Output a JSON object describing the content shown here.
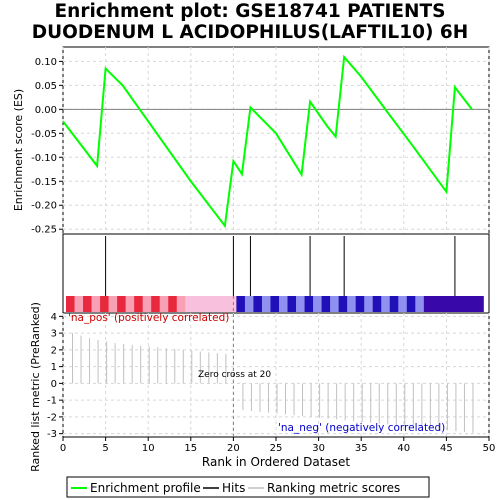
{
  "title_lines": [
    "Enrichment plot: GSE18741 PATIENTS",
    "DUODENUM L ACIDOPHILUS(LAFTIL10) 6H"
  ],
  "colors": {
    "es_line": "#00ff00",
    "hits": "#000000",
    "ranking_bars": "#c0c0c0",
    "zero_line": "#808080",
    "pos_label": "#cc0000",
    "neg_label": "#0000cc",
    "legend_border": "#000000",
    "grid": "#d8d8d8"
  },
  "chart_data": [
    {
      "type": "line",
      "name": "enrichment-profile",
      "ylabel": "Enrichment score (ES)",
      "xlim": [
        0,
        50
      ],
      "ylim": [
        -0.26,
        0.13
      ],
      "yticks": [
        0.1,
        0.05,
        0.0,
        -0.05,
        -0.1,
        -0.15,
        -0.2,
        -0.25
      ],
      "ytick_labels": [
        "0.10",
        "0.05",
        "0.00",
        "-0.05",
        "-0.10",
        "-0.15",
        "-0.20",
        "-0.25"
      ],
      "grid": true,
      "x": [
        0,
        4,
        5,
        7,
        11,
        15,
        19,
        20,
        21,
        22,
        25,
        28,
        29,
        31,
        32,
        33,
        35,
        38,
        41,
        45,
        46,
        48
      ],
      "y": [
        -0.025,
        -0.118,
        0.085,
        0.05,
        -0.05,
        -0.15,
        -0.243,
        -0.108,
        -0.135,
        0.004,
        -0.05,
        -0.136,
        0.016,
        -0.035,
        -0.057,
        0.109,
        0.068,
        -0.004,
        -0.075,
        -0.172,
        0.046,
        0.0
      ]
    },
    {
      "type": "table",
      "name": "hits",
      "hit_positions": [
        5,
        20,
        22,
        29,
        33,
        46
      ],
      "heatmap_rank_count": 49
    },
    {
      "type": "bar",
      "name": "ranked-list-metric",
      "xlabel": "Rank in Ordered Dataset",
      "ylabel": "Ranked list metric (PreRanked)",
      "xlim": [
        0,
        50
      ],
      "ylim": [
        -3.2,
        4.2
      ],
      "xticks": [
        0,
        5,
        10,
        15,
        20,
        25,
        30,
        35,
        40,
        45,
        50
      ],
      "xtick_labels": [
        "0",
        "5",
        "10",
        "15",
        "20",
        "25",
        "30",
        "35",
        "40",
        "45",
        "50"
      ],
      "yticks": [
        4,
        3,
        2,
        1,
        0,
        -1,
        -2,
        -3
      ],
      "ytick_labels": [
        "4",
        "3",
        "2",
        "1",
        "0",
        "-1",
        "-2",
        "-3"
      ],
      "ranks": [
        1,
        2,
        3,
        4,
        5,
        6,
        7,
        8,
        9,
        10,
        11,
        12,
        13,
        14,
        15,
        16,
        17,
        18,
        19,
        21,
        22,
        23,
        24,
        25,
        26,
        27,
        28,
        29,
        30,
        31,
        32,
        33,
        34,
        35,
        36,
        37,
        38,
        39,
        40,
        41,
        42,
        43,
        44,
        45,
        46,
        47,
        48
      ],
      "values": [
        3.0,
        2.85,
        2.7,
        2.6,
        2.5,
        2.4,
        2.35,
        2.3,
        2.25,
        2.2,
        2.15,
        2.1,
        2.05,
        2.0,
        1.95,
        1.9,
        1.85,
        1.8,
        1.75,
        -1.6,
        -1.65,
        -1.7,
        -1.75,
        -1.8,
        -1.85,
        -1.9,
        -1.95,
        -2.0,
        -2.05,
        -2.1,
        -2.15,
        -2.2,
        -2.25,
        -2.3,
        -2.35,
        -2.4,
        -2.45,
        -2.5,
        -2.55,
        -2.6,
        -2.65,
        -2.7,
        -2.75,
        -2.8,
        -2.85,
        -2.9,
        -2.95
      ],
      "zero_cross_rank": 20
    }
  ],
  "labels": {
    "pos": "'na_pos' (positively correlated)",
    "neg": "'na_neg' (negatively correlated)",
    "zero_cross": "Zero cross at 20"
  },
  "legend": {
    "items": [
      "Enrichment profile",
      "Hits",
      "Ranking metric scores"
    ]
  }
}
